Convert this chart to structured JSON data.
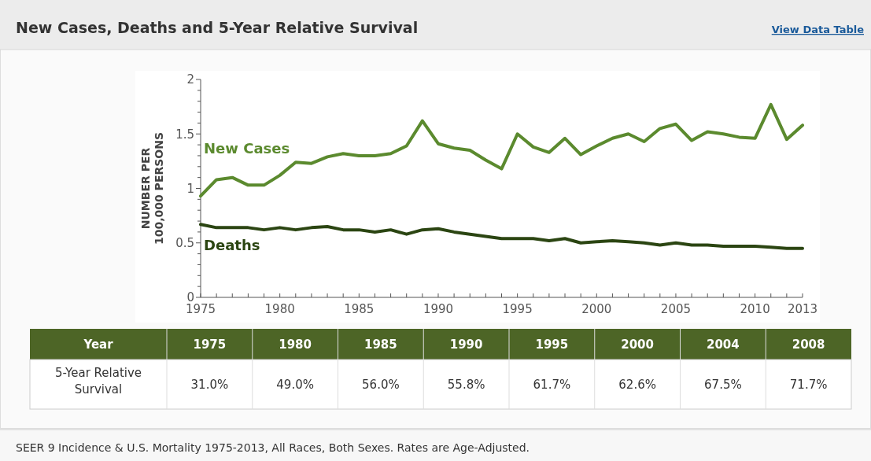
{
  "chart_data": [
    {
      "type": "line",
      "title": "New Cases, Deaths and 5-Year Relative Survival",
      "ylabel": "NUMBER PER\n100,000 PERSONS",
      "annotations": [
        "View Data Table",
        "SEER 9 Incidence & U.S. Mortality 1975-2013, All Races, Both Sexes. Rates are Age-Adjusted."
      ],
      "x": [
        1975,
        1976,
        1977,
        1978,
        1979,
        1980,
        1981,
        1982,
        1983,
        1984,
        1985,
        1986,
        1987,
        1988,
        1989,
        1990,
        1991,
        1992,
        1993,
        1994,
        1995,
        1996,
        1997,
        1998,
        1999,
        2000,
        2001,
        2002,
        2003,
        2004,
        2005,
        2006,
        2007,
        2008,
        2009,
        2010,
        2011,
        2012,
        2013
      ],
      "series": [
        {
          "name": "New Cases",
          "color": "#5b8a2e",
          "values": [
            0.93,
            1.08,
            1.1,
            1.03,
            1.03,
            1.12,
            1.24,
            1.23,
            1.29,
            1.32,
            1.3,
            1.3,
            1.32,
            1.39,
            1.62,
            1.41,
            1.37,
            1.35,
            1.26,
            1.18,
            1.5,
            1.38,
            1.33,
            1.46,
            1.31,
            1.39,
            1.46,
            1.5,
            1.43,
            1.55,
            1.59,
            1.44,
            1.52,
            1.5,
            1.47,
            1.46,
            1.77,
            1.45,
            1.58
          ]
        },
        {
          "name": "Deaths",
          "color": "#2b4512",
          "values": [
            0.67,
            0.64,
            0.64,
            0.64,
            0.62,
            0.64,
            0.62,
            0.64,
            0.65,
            0.62,
            0.62,
            0.6,
            0.62,
            0.58,
            0.62,
            0.63,
            0.6,
            0.58,
            0.56,
            0.54,
            0.54,
            0.54,
            0.52,
            0.54,
            0.5,
            0.51,
            0.52,
            0.51,
            0.5,
            0.48,
            0.5,
            0.48,
            0.48,
            0.47,
            0.47,
            0.47,
            0.46,
            0.45,
            0.45
          ]
        }
      ],
      "xlim": [
        1975,
        2013
      ],
      "xticks": [
        1975,
        {
          "value": 1976,
          "label": null
        },
        {
          "value": 1977,
          "label": null
        },
        {
          "value": 1978,
          "label": null
        },
        {
          "value": 1979,
          "label": null
        },
        1980,
        {
          "value": 1981,
          "label": null
        },
        {
          "value": 1982,
          "label": null
        },
        {
          "value": 1983,
          "label": null
        },
        {
          "value": 1984,
          "label": null
        },
        1985,
        {
          "value": 1986,
          "label": null
        },
        {
          "value": 1987,
          "label": null
        },
        {
          "value": 1988,
          "label": null
        },
        {
          "value": 1989,
          "label": null
        },
        1990,
        {
          "value": 1991,
          "label": null
        },
        {
          "value": 1992,
          "label": null
        },
        {
          "value": 1993,
          "label": null
        },
        {
          "value": 1994,
          "label": null
        },
        1995,
        {
          "value": 1996,
          "label": null
        },
        {
          "value": 1997,
          "label": null
        },
        {
          "value": 1998,
          "label": null
        },
        {
          "value": 1999,
          "label": null
        },
        2000,
        {
          "value": 2001,
          "label": null
        },
        {
          "value": 2002,
          "label": null
        },
        {
          "value": 2003,
          "label": null
        },
        {
          "value": 2004,
          "label": null
        },
        2005,
        {
          "value": 2006,
          "label": null
        },
        {
          "value": 2007,
          "label": null
        },
        {
          "value": 2008,
          "label": null
        },
        {
          "value": 2009,
          "label": null
        },
        2010,
        {
          "value": 2011,
          "label": null
        },
        {
          "value": 2012,
          "label": null
        },
        2013
      ],
      "ylim": [
        0,
        2
      ],
      "yticks": [
        0,
        {
          "value": 0.1,
          "label": null
        },
        {
          "value": 0.2,
          "label": null
        },
        {
          "value": 0.3,
          "label": null
        },
        {
          "value": 0.4,
          "label": null
        },
        0.5,
        {
          "value": 0.6,
          "label": null
        },
        {
          "value": 0.7,
          "label": null
        },
        {
          "value": 0.8,
          "label": null
        },
        {
          "value": 0.9,
          "label": null
        },
        1,
        {
          "value": 1.1,
          "label": null
        },
        {
          "value": 1.2,
          "label": null
        },
        {
          "value": 1.3,
          "label": null
        },
        {
          "value": 1.4,
          "label": null
        },
        1.5,
        {
          "value": 1.6,
          "label": null
        },
        {
          "value": 1.7,
          "label": null
        },
        {
          "value": 1.8,
          "label": null
        },
        {
          "value": 1.9,
          "label": null
        },
        2
      ]
    },
    {
      "type": "heatmap",
      "xlabel": "Year",
      "categories": [
        "1975",
        "1980",
        "1985",
        "1990",
        "1995",
        "2000",
        "2004",
        "2008"
      ],
      "y_categories": [
        "5-Year Relative Survival"
      ],
      "cells": [
        [
          31.0,
          49.0,
          56.0,
          55.8,
          61.7,
          62.6,
          67.5,
          71.7
        ]
      ],
      "cell_labels": [
        [
          "31.0%",
          "49.0%",
          "56.0%",
          "55.8%",
          "61.7%",
          "62.6%",
          "67.5%",
          "71.7%"
        ]
      ]
    }
  ]
}
